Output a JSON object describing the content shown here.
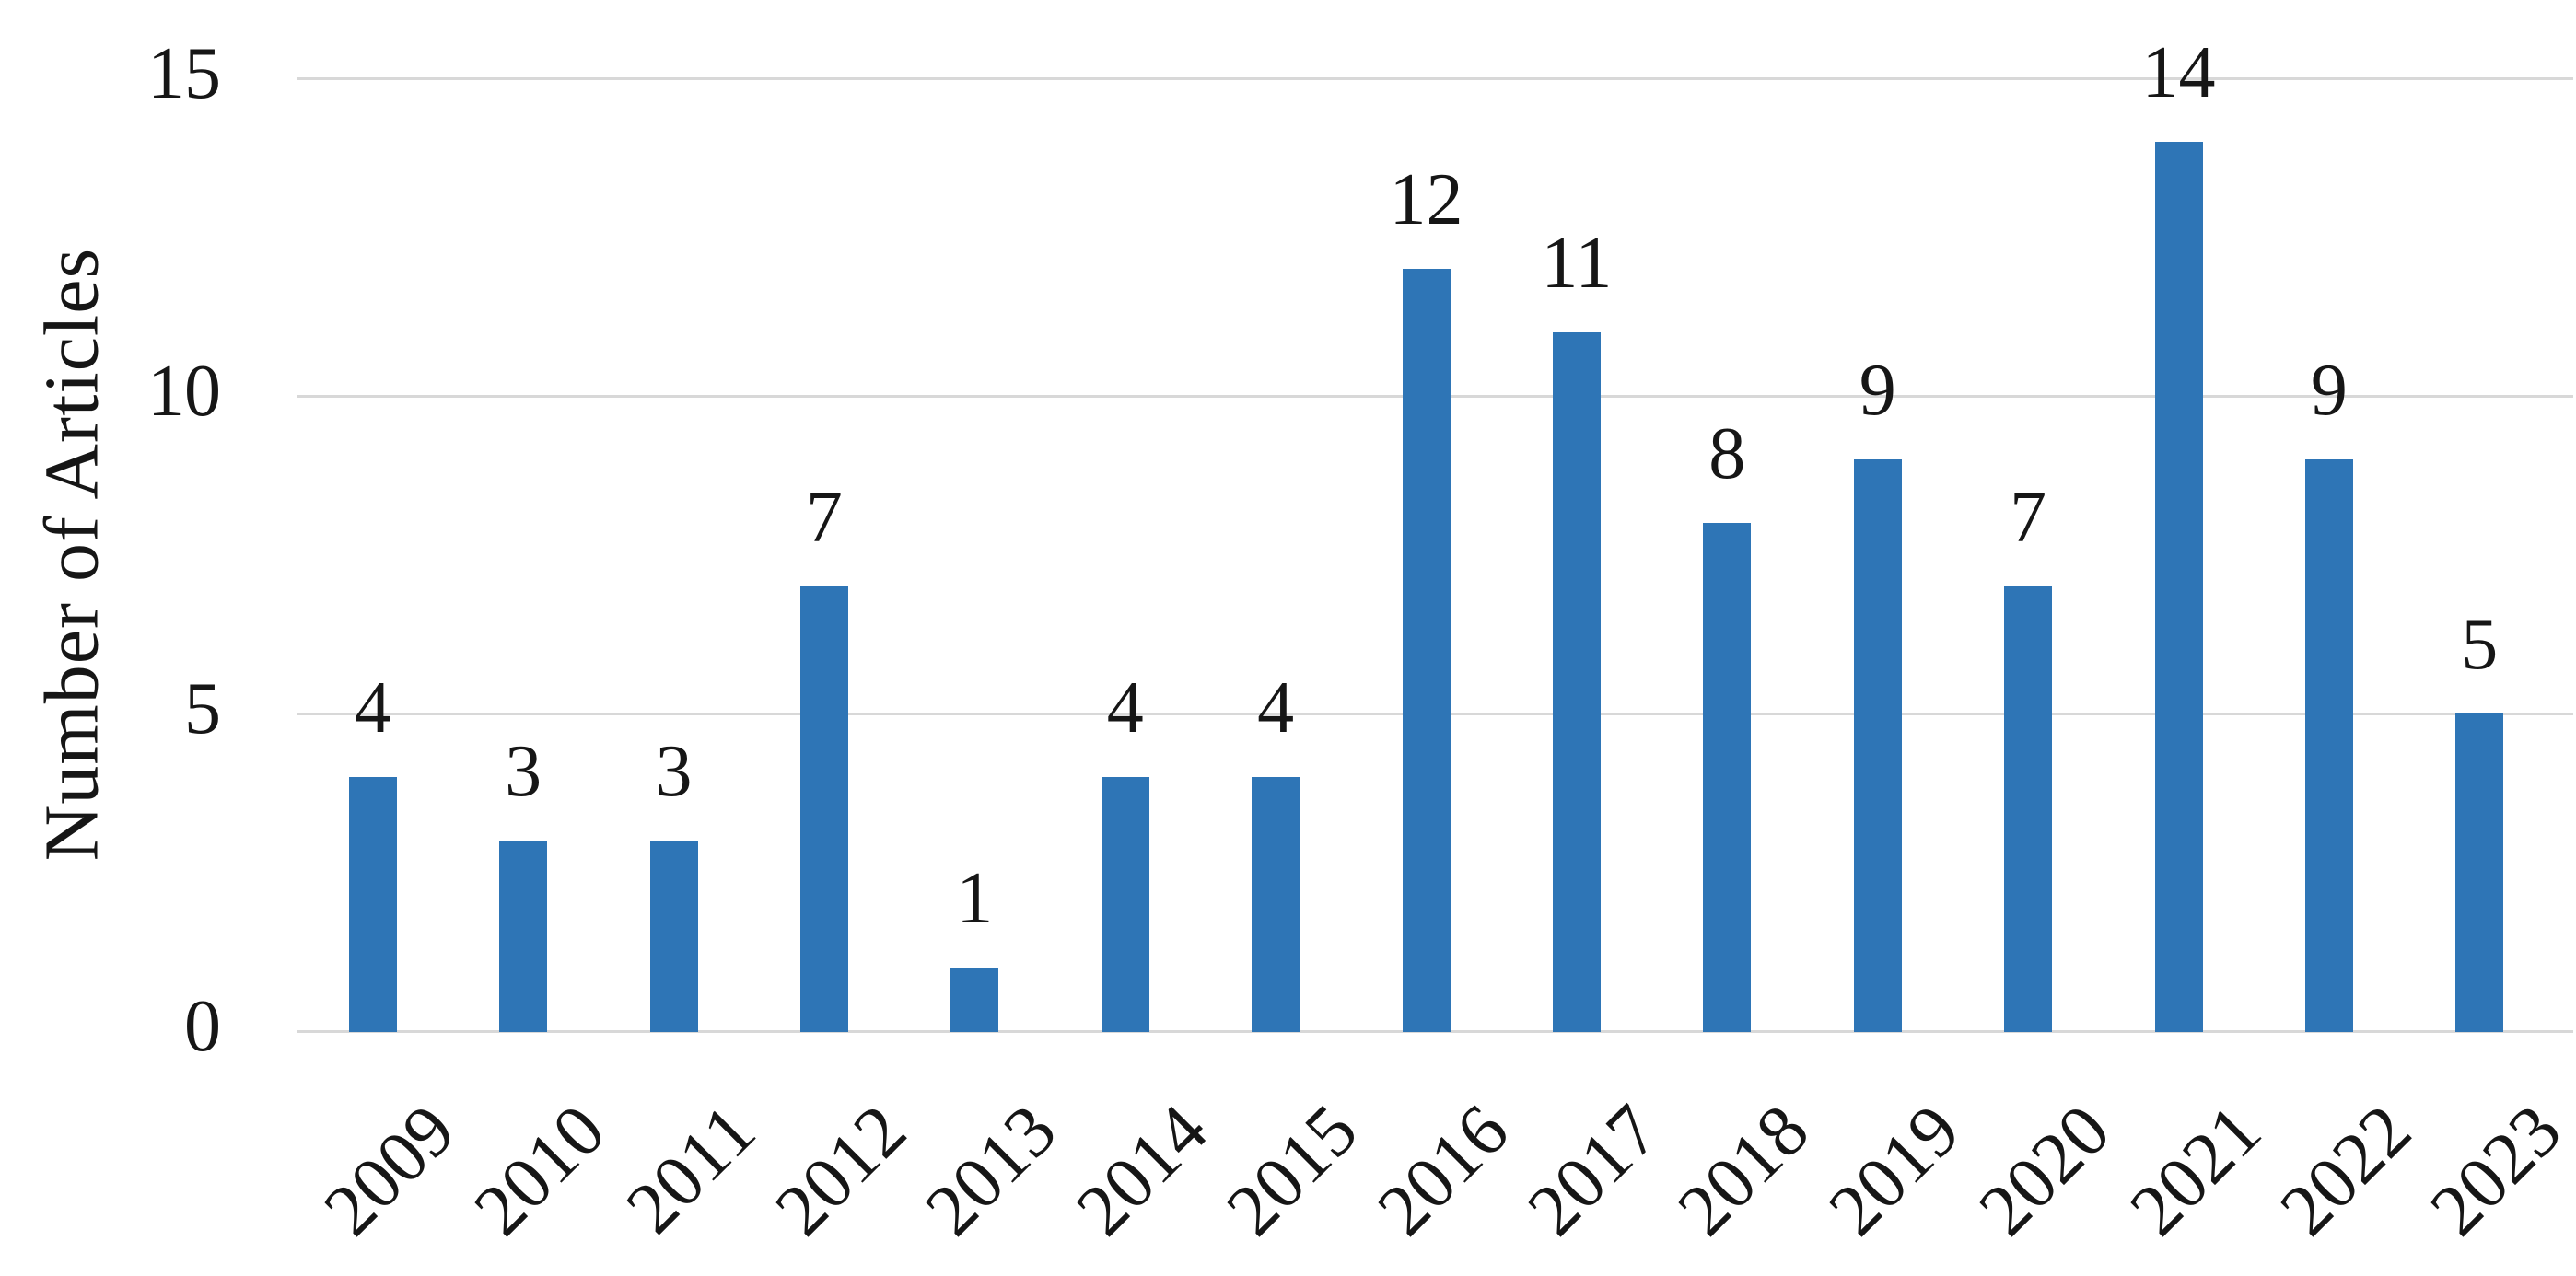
{
  "chart_data": {
    "type": "bar",
    "categories": [
      "2009",
      "2010",
      "2011",
      "2012",
      "2013",
      "2014",
      "2015",
      "2016",
      "2017",
      "2018",
      "2019",
      "2020",
      "2021",
      "2022",
      "2023"
    ],
    "values": [
      4,
      3,
      3,
      7,
      1,
      4,
      4,
      12,
      11,
      8,
      9,
      7,
      14,
      9,
      5
    ],
    "data_labels": [
      "4",
      "3",
      "3",
      "7",
      "1",
      "4",
      "4",
      "12",
      "11",
      "8",
      "9",
      "7",
      "14",
      "9",
      "5"
    ],
    "title": "",
    "xlabel": "",
    "ylabel": "Number of Articles",
    "ylim": [
      0,
      15
    ],
    "yticks": [
      "0",
      "5",
      "10",
      "15"
    ],
    "grid": "horizontal",
    "legend": "none",
    "colors": {
      "bar": "#2e75b6",
      "gridline": "#d8d8d8",
      "text": "#161616",
      "background": "#ffffff"
    }
  }
}
